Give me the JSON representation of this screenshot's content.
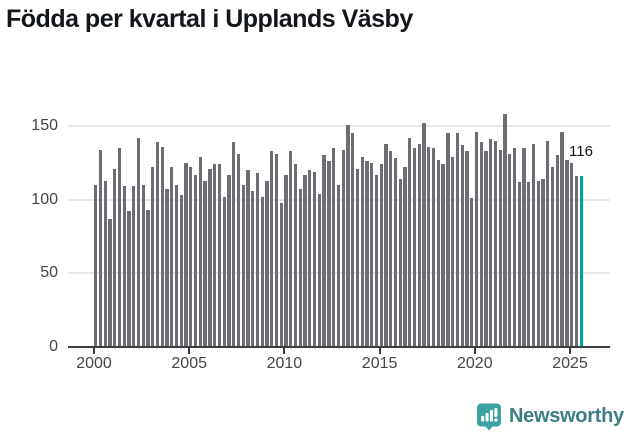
{
  "title": "Födda per kvartal i Upplands Väsby",
  "annotation": {
    "label": "116"
  },
  "logo": {
    "text": "Newsworthy",
    "icon": "newsworthy-speech-bubble-chart-icon"
  },
  "colors": {
    "bar": "#6d6d73",
    "highlight": "#00a1a3",
    "grid": "#e7e7e9",
    "axis": "#3c3c41",
    "title_text": "#13161a",
    "tick_text": "#454548",
    "logo_teal": "#3ea1a4",
    "logo_text": "#3c7e84"
  },
  "chart_data": {
    "type": "bar",
    "title": "Födda per kvartal i Upplands Väsby",
    "xlabel": "",
    "ylabel": "",
    "x_start": "2000-Q1",
    "x_end": "2025-Q3",
    "x_tick_labels": [
      "2000",
      "2005",
      "2010",
      "2015",
      "2020",
      "2025"
    ],
    "y_ticks": [
      0,
      50,
      100,
      150
    ],
    "ylim": [
      0,
      160
    ],
    "grid": true,
    "legend": "none",
    "series": [
      {
        "name": "Födda per kvartal",
        "values": [
          110,
          134,
          113,
          87,
          121,
          135,
          109,
          92,
          109,
          142,
          110,
          93,
          122,
          139,
          136,
          107,
          122,
          110,
          103,
          125,
          122,
          117,
          129,
          113,
          121,
          124,
          124,
          102,
          117,
          139,
          131,
          110,
          120,
          106,
          118,
          102,
          113,
          133,
          131,
          98,
          117,
          133,
          124,
          107,
          117,
          120,
          119,
          104,
          130,
          126,
          135,
          110,
          134,
          151,
          145,
          121,
          129,
          126,
          125,
          117,
          124,
          138,
          133,
          128,
          114,
          122,
          142,
          135,
          138,
          152,
          136,
          135,
          127,
          124,
          145,
          129,
          145,
          137,
          133,
          101,
          146,
          139,
          133,
          141,
          140,
          134,
          158,
          131,
          135,
          112,
          135,
          112,
          138,
          113,
          114,
          140,
          122,
          130,
          146,
          127,
          125,
          116,
          116
        ]
      }
    ],
    "highlight": {
      "index": 102,
      "value": 116,
      "label": "116"
    }
  }
}
